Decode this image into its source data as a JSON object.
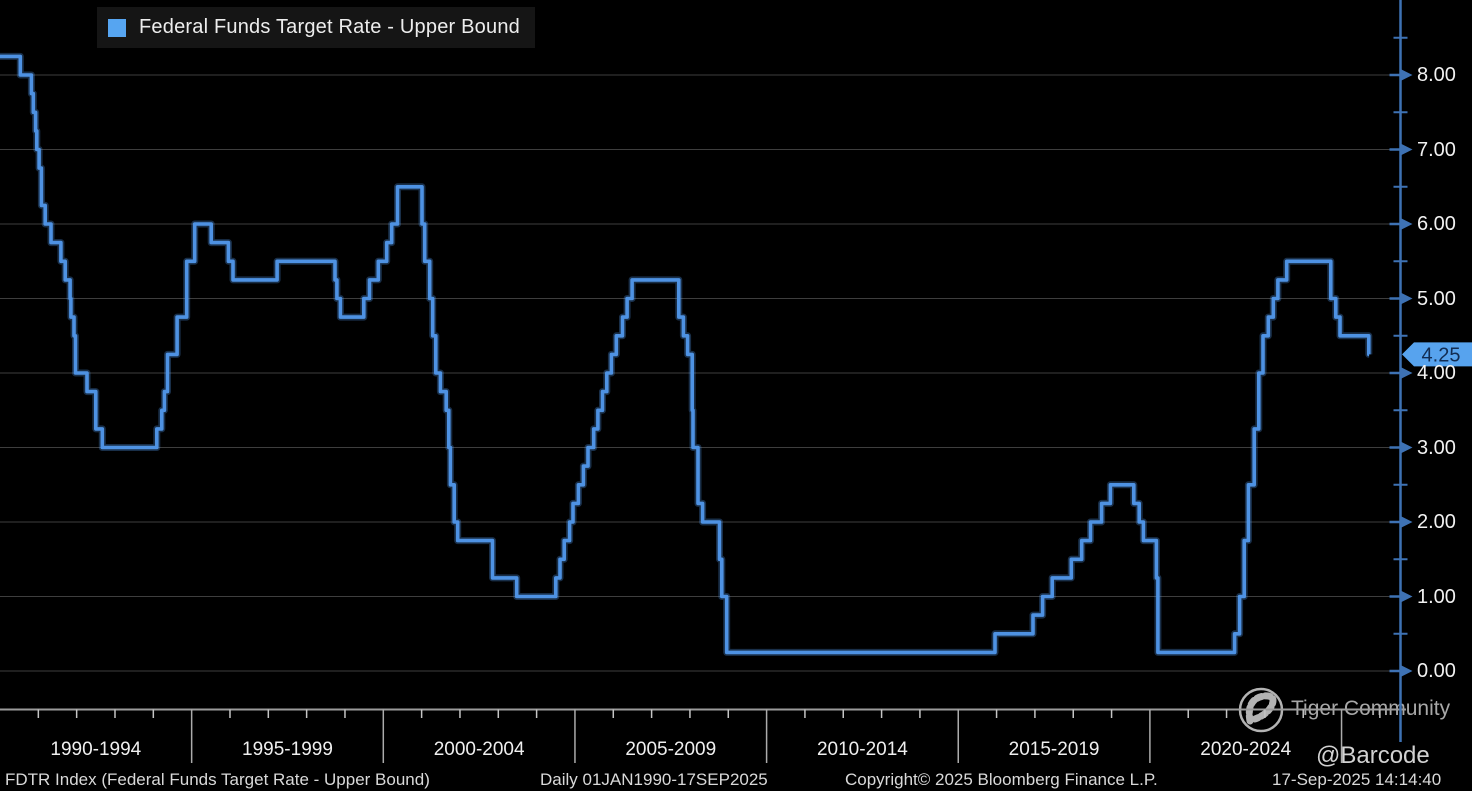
{
  "legend": {
    "label": "Federal Funds Target Rate - Upper Bound",
    "marker_color": "#56A5F1"
  },
  "footer": {
    "left": "FDTR Index (Federal Funds Target Rate - Upper Bound)",
    "range": "Daily 01JAN1990-17SEP2025",
    "copyright": "Copyright© 2025 Bloomberg Finance L.P.",
    "datetime": "17-Sep-2025 14:14:40"
  },
  "watermarks": {
    "community": "Tiger Community",
    "handle": "@Barcode"
  },
  "colors": {
    "line": "#4E92E3",
    "axis": "#3E72B4",
    "grid": "#3E3E3E",
    "tag_bg": "#57A3EE",
    "tag_text": "#122C52",
    "baseline": "#9B9B9B",
    "tick": "#C4C4C4"
  },
  "chart_data": {
    "type": "line",
    "step": true,
    "title": "Federal Funds Target Rate - Upper Bound",
    "xlabel": "",
    "ylabel": "",
    "x_domain_years": [
      1990,
      2026.53
    ],
    "x_end_year": 2025.72,
    "ylim": [
      0,
      8.5
    ],
    "grid": "horizontal",
    "legend_position": "top-left",
    "y_ticks": [
      0,
      1,
      2,
      3,
      4,
      5,
      6,
      7,
      8
    ],
    "y_tick_labels": [
      "0.00",
      "1.00",
      "2.00",
      "3.00",
      "4.00",
      "5.00",
      "6.00",
      "7.00",
      "8.00"
    ],
    "y_minor_step": 0.5,
    "x_sections": [
      "1990-1994",
      "1995-1999",
      "2000-2004",
      "2005-2009",
      "2010-2014",
      "2015-2019",
      "2020-2024"
    ],
    "x_section_start_years": [
      1990,
      1995,
      2000,
      2005,
      2010,
      2015,
      2020
    ],
    "last_value": 4.25,
    "last_value_label": "4.25",
    "series": [
      {
        "name": "Federal Funds Target Rate - Upper Bound",
        "points": [
          [
            1990.0,
            8.25
          ],
          [
            1990.53,
            8.0
          ],
          [
            1990.82,
            7.75
          ],
          [
            1990.87,
            7.5
          ],
          [
            1990.93,
            7.25
          ],
          [
            1990.96,
            7.0
          ],
          [
            1991.02,
            6.75
          ],
          [
            1991.08,
            6.25
          ],
          [
            1991.18,
            6.0
          ],
          [
            1991.33,
            5.75
          ],
          [
            1991.59,
            5.5
          ],
          [
            1991.7,
            5.25
          ],
          [
            1991.83,
            5.0
          ],
          [
            1991.85,
            4.75
          ],
          [
            1991.93,
            4.5
          ],
          [
            1991.97,
            4.0
          ],
          [
            1992.27,
            3.75
          ],
          [
            1992.5,
            3.25
          ],
          [
            1992.67,
            3.0
          ],
          [
            1994.09,
            3.25
          ],
          [
            1994.22,
            3.5
          ],
          [
            1994.29,
            3.75
          ],
          [
            1994.37,
            4.25
          ],
          [
            1994.62,
            4.75
          ],
          [
            1994.87,
            5.5
          ],
          [
            1995.08,
            6.0
          ],
          [
            1995.51,
            5.75
          ],
          [
            1995.96,
            5.5
          ],
          [
            1996.08,
            5.25
          ],
          [
            1997.23,
            5.5
          ],
          [
            1998.74,
            5.25
          ],
          [
            1998.79,
            5.0
          ],
          [
            1998.88,
            4.75
          ],
          [
            1999.49,
            5.0
          ],
          [
            1999.64,
            5.25
          ],
          [
            1999.87,
            5.5
          ],
          [
            2000.09,
            5.75
          ],
          [
            2000.22,
            6.0
          ],
          [
            2000.37,
            6.5
          ],
          [
            2001.01,
            6.0
          ],
          [
            2001.08,
            5.5
          ],
          [
            2001.21,
            5.0
          ],
          [
            2001.29,
            4.5
          ],
          [
            2001.37,
            4.0
          ],
          [
            2001.49,
            3.75
          ],
          [
            2001.64,
            3.5
          ],
          [
            2001.71,
            3.0
          ],
          [
            2001.75,
            2.5
          ],
          [
            2001.85,
            2.0
          ],
          [
            2001.94,
            1.75
          ],
          [
            2002.85,
            1.25
          ],
          [
            2003.48,
            1.0
          ],
          [
            2004.5,
            1.25
          ],
          [
            2004.61,
            1.5
          ],
          [
            2004.72,
            1.75
          ],
          [
            2004.86,
            2.0
          ],
          [
            2004.95,
            2.25
          ],
          [
            2005.09,
            2.5
          ],
          [
            2005.22,
            2.75
          ],
          [
            2005.34,
            3.0
          ],
          [
            2005.49,
            3.25
          ],
          [
            2005.6,
            3.5
          ],
          [
            2005.72,
            3.75
          ],
          [
            2005.83,
            4.0
          ],
          [
            2005.95,
            4.25
          ],
          [
            2006.08,
            4.5
          ],
          [
            2006.24,
            4.75
          ],
          [
            2006.36,
            5.0
          ],
          [
            2006.49,
            5.25
          ],
          [
            2007.71,
            4.75
          ],
          [
            2007.83,
            4.5
          ],
          [
            2007.94,
            4.25
          ],
          [
            2008.06,
            3.5
          ],
          [
            2008.08,
            3.0
          ],
          [
            2008.21,
            2.25
          ],
          [
            2008.33,
            2.0
          ],
          [
            2008.77,
            1.5
          ],
          [
            2008.83,
            1.0
          ],
          [
            2008.96,
            0.25
          ],
          [
            2015.96,
            0.5
          ],
          [
            2016.95,
            0.75
          ],
          [
            2017.2,
            1.0
          ],
          [
            2017.45,
            1.25
          ],
          [
            2017.95,
            1.5
          ],
          [
            2018.22,
            1.75
          ],
          [
            2018.45,
            2.0
          ],
          [
            2018.74,
            2.25
          ],
          [
            2018.97,
            2.5
          ],
          [
            2019.58,
            2.25
          ],
          [
            2019.72,
            2.0
          ],
          [
            2019.83,
            1.75
          ],
          [
            2020.17,
            1.25
          ],
          [
            2020.21,
            0.25
          ],
          [
            2022.21,
            0.5
          ],
          [
            2022.34,
            1.0
          ],
          [
            2022.46,
            1.75
          ],
          [
            2022.57,
            2.5
          ],
          [
            2022.72,
            3.25
          ],
          [
            2022.84,
            4.0
          ],
          [
            2022.95,
            4.5
          ],
          [
            2023.09,
            4.75
          ],
          [
            2023.22,
            5.0
          ],
          [
            2023.34,
            5.25
          ],
          [
            2023.57,
            5.5
          ],
          [
            2024.72,
            5.0
          ],
          [
            2024.85,
            4.75
          ],
          [
            2024.96,
            4.5
          ],
          [
            2025.71,
            4.25
          ]
        ]
      }
    ]
  }
}
